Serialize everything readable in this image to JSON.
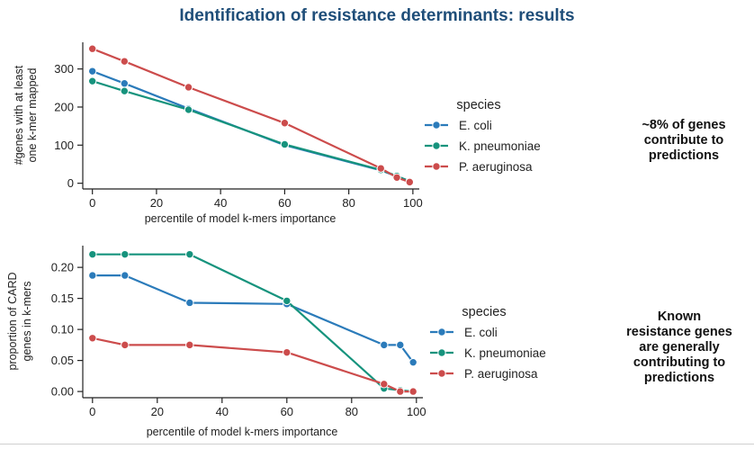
{
  "title": "Identification of resistance determinants: results",
  "colors": {
    "ecoli": "#2b7bba",
    "kpneumoniae": "#16937d",
    "paeruginosa": "#cc4c4c",
    "title": "#1f4e79"
  },
  "notes": {
    "top": [
      "~8% of genes",
      "contribute to",
      "predictions"
    ],
    "bottom": [
      "Known",
      "resistance genes",
      "are generally",
      "contributing to",
      "predictions"
    ]
  },
  "chart_data": [
    {
      "type": "line",
      "xlabel": "percentile of model k-mers importance",
      "ylabel": [
        "#genes with at least",
        "one k-mer mapped"
      ],
      "xlim": [
        -3,
        102
      ],
      "ylim": [
        -15,
        370
      ],
      "xticks": [
        "0",
        "20",
        "40",
        "60",
        "80",
        "100"
      ],
      "yticks": [
        "0",
        "100",
        "200",
        "300"
      ],
      "legend_title": "species",
      "legend_position": "right",
      "series": [
        {
          "name": "E. coli",
          "color_key": "ecoli",
          "x": [
            0,
            10,
            30,
            60,
            90,
            95,
            99
          ],
          "values": [
            294,
            262,
            196,
            100,
            34,
            18,
            6
          ]
        },
        {
          "name": "K. pneumoniae",
          "color_key": "kpneumoniae",
          "x": [
            0,
            10,
            30,
            60,
            90,
            95,
            99
          ],
          "values": [
            268,
            242,
            193,
            102,
            35,
            19,
            5
          ]
        },
        {
          "name": "P. aeruginosa",
          "color_key": "paeruginosa",
          "x": [
            0,
            10,
            30,
            60,
            90,
            95,
            99
          ],
          "values": [
            353,
            320,
            252,
            158,
            39,
            15,
            3
          ]
        }
      ]
    },
    {
      "type": "line",
      "xlabel": "percentile of model k-mers importance",
      "ylabel": [
        "proportion of CARD",
        "genes in k-mers"
      ],
      "xlim": [
        -3,
        102
      ],
      "ylim": [
        -0.01,
        0.235
      ],
      "xticks": [
        "0",
        "20",
        "40",
        "60",
        "80",
        "100"
      ],
      "yticks": [
        "0.00",
        "0.05",
        "0.10",
        "0.15",
        "0.20"
      ],
      "legend_title": "species",
      "legend_position": "right",
      "series": [
        {
          "name": "E. coli",
          "color_key": "ecoli",
          "x": [
            0,
            10,
            30,
            60,
            90,
            95,
            99
          ],
          "values": [
            0.187,
            0.187,
            0.143,
            0.141,
            0.075,
            0.075,
            0.047
          ]
        },
        {
          "name": "K. pneumoniae",
          "color_key": "kpneumoniae",
          "x": [
            0,
            10,
            30,
            60,
            90,
            95,
            99
          ],
          "values": [
            0.221,
            0.221,
            0.221,
            0.146,
            0.005,
            0.002,
            0.0
          ]
        },
        {
          "name": "P. aeruginosa",
          "color_key": "paeruginosa",
          "x": [
            0,
            10,
            30,
            60,
            90,
            95,
            99
          ],
          "values": [
            0.086,
            0.075,
            0.075,
            0.063,
            0.012,
            0.0,
            0.0
          ]
        }
      ]
    }
  ]
}
